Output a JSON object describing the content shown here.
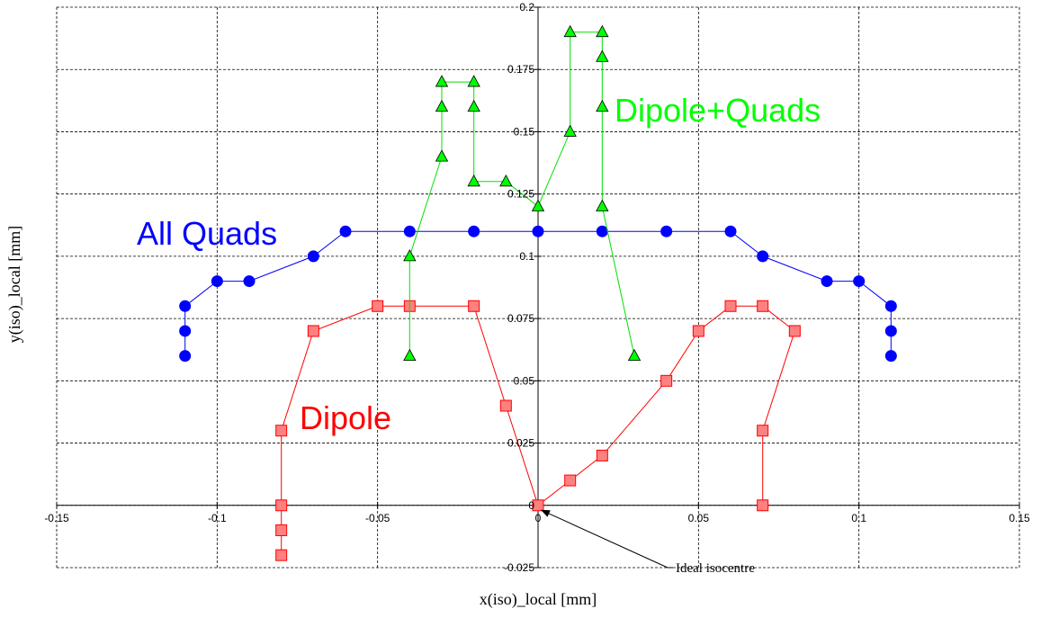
{
  "chart_data": {
    "type": "line",
    "xlabel": "x(iso)_local [mm]",
    "ylabel": "y(iso)_local [mm]",
    "xlim": [
      -0.15,
      0.15
    ],
    "ylim": [
      -0.025,
      0.2
    ],
    "x_ticks": [
      -0.15,
      -0.1,
      -0.05,
      0,
      0.05,
      0.1,
      0.15
    ],
    "y_ticks": [
      -0.025,
      0,
      0.025,
      0.05,
      0.075,
      0.1,
      0.125,
      0.15,
      0.175,
      0.2
    ],
    "x_tick_labels": [
      "-0.15",
      "-0.1",
      "-0.05",
      "0",
      "0.05",
      "0.1",
      "0.15"
    ],
    "y_tick_labels": [
      "-0.025",
      "0",
      "0.025",
      "0.05",
      "0.075",
      "0.1",
      "0.125",
      "0.15",
      "0.175",
      "0.2"
    ],
    "grid": true,
    "series": [
      {
        "name": "All Quads",
        "color": "#0000ff",
        "marker": "circle",
        "points": [
          [
            -0.11,
            0.06
          ],
          [
            -0.11,
            0.07
          ],
          [
            -0.11,
            0.08
          ],
          [
            -0.1,
            0.09
          ],
          [
            -0.09,
            0.09
          ],
          [
            -0.07,
            0.1
          ],
          [
            -0.06,
            0.11
          ],
          [
            -0.04,
            0.11
          ],
          [
            -0.02,
            0.11
          ],
          [
            0,
            0.11
          ],
          [
            0.02,
            0.11
          ],
          [
            0.04,
            0.11
          ],
          [
            0.06,
            0.11
          ],
          [
            0.07,
            0.1
          ],
          [
            0.09,
            0.09
          ],
          [
            0.1,
            0.09
          ],
          [
            0.11,
            0.08
          ],
          [
            0.11,
            0.07
          ],
          [
            0.11,
            0.06
          ]
        ]
      },
      {
        "name": "Dipole",
        "color": "#ff0000",
        "marker_fill": "#ff8080",
        "marker": "square",
        "points": [
          [
            -0.08,
            -0.02
          ],
          [
            -0.08,
            -0.01
          ],
          [
            -0.08,
            0
          ],
          [
            -0.08,
            0.03
          ],
          [
            -0.07,
            0.07
          ],
          [
            -0.05,
            0.08
          ],
          [
            -0.04,
            0.08
          ],
          [
            -0.02,
            0.08
          ],
          [
            -0.01,
            0.04
          ],
          [
            0,
            0
          ],
          [
            0.01,
            0.01
          ],
          [
            0.02,
            0.02
          ],
          [
            0.04,
            0.05
          ],
          [
            0.05,
            0.07
          ],
          [
            0.06,
            0.08
          ],
          [
            0.07,
            0.08
          ],
          [
            0.08,
            0.07
          ],
          [
            0.07,
            0.03
          ],
          [
            0.07,
            0
          ]
        ]
      },
      {
        "name": "Dipole+Quads",
        "color": "#00e000",
        "marker_fill": "#00ff00",
        "marker": "triangle",
        "points": [
          [
            -0.04,
            0.06
          ],
          [
            -0.04,
            0.1
          ],
          [
            -0.03,
            0.14
          ],
          [
            -0.03,
            0.16
          ],
          [
            -0.03,
            0.17
          ],
          [
            -0.02,
            0.17
          ],
          [
            -0.02,
            0.16
          ],
          [
            -0.02,
            0.13
          ],
          [
            -0.01,
            0.13
          ],
          [
            0,
            0.12
          ],
          [
            0.01,
            0.15
          ],
          [
            0.01,
            0.19
          ],
          [
            0.02,
            0.19
          ],
          [
            0.02,
            0.18
          ],
          [
            0.02,
            0.16
          ],
          [
            0.02,
            0.12
          ],
          [
            0.03,
            0.06
          ]
        ]
      }
    ],
    "annotations": [
      {
        "text": "Ideal isocentre",
        "points_to": [
          0,
          0
        ]
      }
    ]
  }
}
